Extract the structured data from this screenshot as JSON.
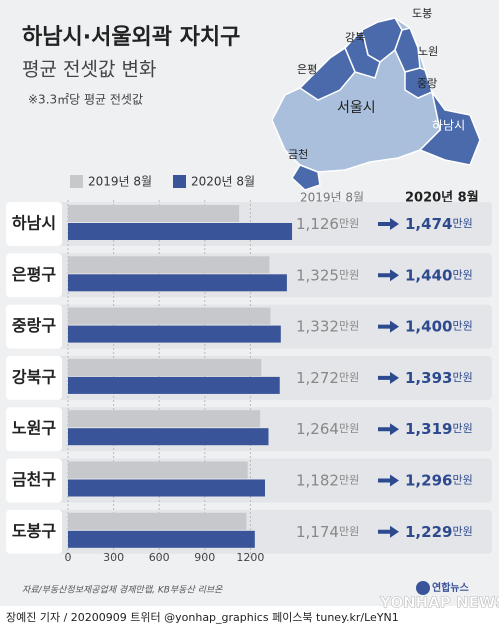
{
  "chart_data": {
    "type": "barh",
    "title": "하남시·서울외곽 자치구",
    "subtitle": "평균 전셋값 변화",
    "note": "※3.3㎡당 평균 전셋값",
    "map_labels": [
      "강북",
      "도봉",
      "노원",
      "은평",
      "중랑",
      "서울시",
      "하남시",
      "금천"
    ],
    "categories": [
      "하남시",
      "은평구",
      "중랑구",
      "강북구",
      "노원구",
      "금천구",
      "도봉구"
    ],
    "series": [
      {
        "name": "2019년 8월",
        "color": "#c6c8cb",
        "values": [
          1126,
          1325,
          1332,
          1272,
          1264,
          1182,
          1174
        ],
        "value_labels": [
          "1,126",
          "1,325",
          "1,332",
          "1,272",
          "1,264",
          "1,182",
          "1,174"
        ]
      },
      {
        "name": "2020년 8월",
        "color": "#3a5499",
        "values": [
          1474,
          1440,
          1400,
          1393,
          1319,
          1296,
          1229
        ],
        "value_labels": [
          "1,474",
          "1,440",
          "1,400",
          "1,393",
          "1,319",
          "1,296",
          "1,229"
        ]
      }
    ],
    "column_headers": [
      "2019년 8월",
      "2020년 8월"
    ],
    "unit": "만원",
    "xlim": [
      0,
      1500
    ],
    "xticks": [
      0,
      300,
      600,
      900,
      1200
    ],
    "source": "자료/부동산정보제공업체 경제만랩, KB부동산 리브온",
    "credit": "장예진 기자 / 20200909 트위터 @yonhap_graphics  페이스북 tuney.kr/LeYN1",
    "logo": "연합뉴스",
    "logo_en": "YONHAP NEWS"
  }
}
